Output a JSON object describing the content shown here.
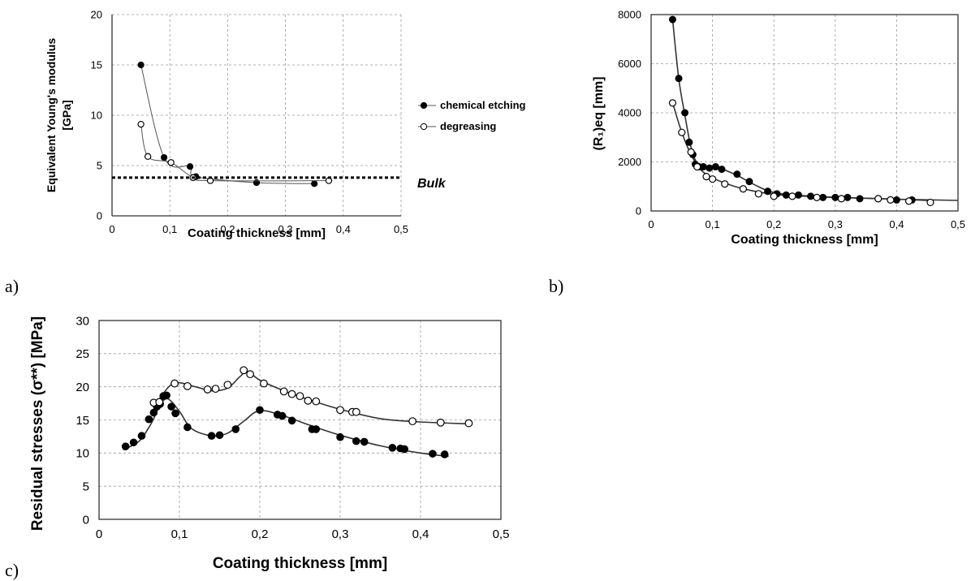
{
  "panel_labels": [
    "a)",
    "b)",
    "c)"
  ],
  "chart_data": [
    {
      "type": "line",
      "xlabel": "Coating thickness [mm]",
      "ylabel": [
        "Equivalent Young's modulus",
        "[GPa]"
      ],
      "xlim": [
        0,
        0.5
      ],
      "ylim": [
        0,
        20
      ],
      "xticks": [
        "0",
        "0,1",
        "0,2",
        "0,3",
        "0,4",
        "0,5"
      ],
      "yticks": [
        "0",
        "5",
        "10",
        "15",
        "20"
      ],
      "grid": true,
      "legend_position": "right",
      "annotation": "Bulk",
      "reference_line": 3.8,
      "series": [
        {
          "name": "chemical etching",
          "marker": "filled",
          "x": [
            0.05,
            0.09,
            0.135,
            0.145,
            0.25,
            0.35
          ],
          "y": [
            15,
            5.8,
            4.9,
            3.9,
            3.3,
            3.2
          ]
        },
        {
          "name": "degreasing",
          "marker": "open",
          "x": [
            0.05,
            0.062,
            0.102,
            0.14,
            0.17,
            0.375
          ],
          "y": [
            9.1,
            5.9,
            5.3,
            3.8,
            3.5,
            3.5
          ]
        }
      ]
    },
    {
      "type": "scatter",
      "xlabel": "Coating thickness [mm]",
      "ylabel": "(R₁)eq [mm]",
      "xlim": [
        0,
        0.5
      ],
      "ylim": [
        0,
        8000
      ],
      "xticks": [
        "0",
        "0,1",
        "0,2",
        "0,3",
        "0,4",
        "0,5"
      ],
      "yticks": [
        "0",
        "2000",
        "4000",
        "6000",
        "8000"
      ],
      "grid": true,
      "series": [
        {
          "marker": "filled",
          "x": [
            0.035,
            0.045,
            0.055,
            0.062,
            0.068,
            0.072,
            0.078,
            0.085,
            0.095,
            0.105,
            0.115,
            0.14,
            0.16,
            0.19,
            0.205,
            0.22,
            0.24,
            0.26,
            0.28,
            0.3,
            0.32,
            0.34,
            0.37,
            0.4,
            0.425
          ],
          "y": [
            7800,
            5400,
            4000,
            2800,
            2300,
            1900,
            1800,
            1800,
            1750,
            1800,
            1700,
            1500,
            1200,
            800,
            700,
            650,
            650,
            600,
            550,
            550,
            550,
            500,
            500,
            450,
            450
          ]
        },
        {
          "marker": "open",
          "x": [
            0.035,
            0.05,
            0.065,
            0.075,
            0.09,
            0.1,
            0.12,
            0.15,
            0.175,
            0.2,
            0.23,
            0.27,
            0.31,
            0.37,
            0.39,
            0.42,
            0.455
          ],
          "y": [
            4400,
            3200,
            2400,
            1800,
            1400,
            1300,
            1100,
            900,
            700,
            600,
            600,
            550,
            500,
            500,
            450,
            400,
            350
          ]
        }
      ],
      "curves": [
        {
          "x": [
            0.035,
            0.045,
            0.055,
            0.065,
            0.075,
            0.09,
            0.11,
            0.14,
            0.17,
            0.2,
            0.25,
            0.3,
            0.35,
            0.4,
            0.5
          ],
          "y": [
            7800,
            5400,
            3900,
            2600,
            1950,
            1800,
            1750,
            1450,
            1050,
            750,
            620,
            560,
            520,
            480,
            430
          ]
        },
        {
          "x": [
            0.035,
            0.05,
            0.065,
            0.08,
            0.1,
            0.13,
            0.16,
            0.2,
            0.25,
            0.3,
            0.35,
            0.4,
            0.46
          ],
          "y": [
            4400,
            3200,
            2300,
            1700,
            1350,
            1050,
            850,
            680,
            600,
            550,
            520,
            480,
            420
          ]
        }
      ]
    },
    {
      "type": "scatter",
      "xlabel": "Coating thickness [mm]",
      "ylabel": "Residual stresses (σ**) [MPa]",
      "xlim": [
        0,
        0.5
      ],
      "ylim": [
        0,
        30
      ],
      "xticks": [
        "0",
        "0,1",
        "0,2",
        "0,3",
        "0,4",
        "0,5"
      ],
      "yticks": [
        "0",
        "5",
        "10",
        "15",
        "20",
        "25",
        "30"
      ],
      "grid": true,
      "series": [
        {
          "marker": "filled",
          "x": [
            0.033,
            0.043,
            0.053,
            0.062,
            0.068,
            0.072,
            0.076,
            0.08,
            0.084,
            0.09,
            0.095,
            0.11,
            0.14,
            0.15,
            0.17,
            0.2,
            0.222,
            0.228,
            0.24,
            0.265,
            0.27,
            0.3,
            0.32,
            0.33,
            0.365,
            0.375,
            0.38,
            0.415,
            0.43
          ],
          "y": [
            11,
            11.6,
            12.6,
            15.1,
            16.1,
            17,
            17.4,
            18.6,
            18.7,
            17,
            16,
            13.9,
            12.6,
            12.7,
            13.6,
            16.5,
            15.8,
            15.6,
            14.9,
            13.6,
            13.6,
            12.4,
            11.8,
            11.7,
            10.8,
            10.7,
            10.6,
            9.9,
            9.8
          ]
        },
        {
          "marker": "open",
          "x": [
            0.068,
            0.075,
            0.094,
            0.11,
            0.135,
            0.145,
            0.16,
            0.18,
            0.188,
            0.205,
            0.23,
            0.24,
            0.25,
            0.26,
            0.27,
            0.3,
            0.315,
            0.32,
            0.39,
            0.425,
            0.46
          ],
          "y": [
            17.6,
            17.7,
            20.5,
            20.1,
            19.6,
            19.7,
            20.3,
            22.5,
            21.9,
            20.5,
            19.3,
            18.9,
            18.6,
            17.9,
            17.8,
            16.5,
            16.2,
            16.2,
            14.8,
            14.6,
            14.5
          ]
        }
      ],
      "curves": [
        {
          "x": [
            0.03,
            0.05,
            0.065,
            0.075,
            0.085,
            0.1,
            0.115,
            0.14,
            0.16,
            0.18,
            0.2,
            0.23,
            0.26,
            0.3,
            0.35,
            0.4,
            0.435
          ],
          "y": [
            10.5,
            11.8,
            14.5,
            17,
            18.2,
            16.3,
            13.7,
            12.6,
            13,
            14.8,
            16.4,
            15.6,
            14.3,
            12.7,
            11.1,
            10,
            9.5
          ]
        },
        {
          "x": [
            0.065,
            0.08,
            0.095,
            0.12,
            0.14,
            0.16,
            0.175,
            0.185,
            0.2,
            0.23,
            0.26,
            0.3,
            0.35,
            0.4,
            0.46
          ],
          "y": [
            16,
            19,
            20.6,
            20,
            19.4,
            19.8,
            21.5,
            22.3,
            21,
            19.4,
            18.1,
            16.6,
            15.2,
            14.7,
            14.4
          ]
        }
      ]
    }
  ]
}
